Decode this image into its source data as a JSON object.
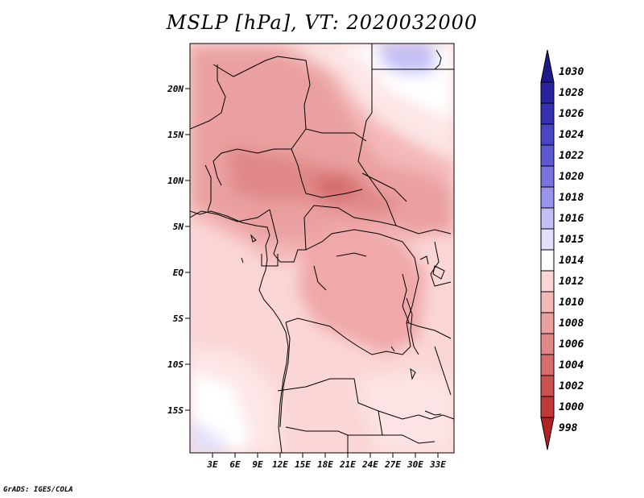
{
  "title": "MSLP [hPa], VT: 2020032000",
  "credit": "GrADS: IGES/COLA",
  "lat_labels": [
    "20N",
    "15N",
    "10N",
    "5N",
    "EQ",
    "5S",
    "10S",
    "15S"
  ],
  "lon_labels": [
    "3E",
    "6E",
    "9E",
    "12E",
    "15E",
    "18E",
    "21E",
    "24E",
    "27E",
    "30E",
    "33E"
  ],
  "colorbar": {
    "labels": [
      "1030",
      "1028",
      "1026",
      "1024",
      "1022",
      "1020",
      "1018",
      "1016",
      "1015",
      "1014",
      "1012",
      "1010",
      "1008",
      "1006",
      "1004",
      "1002",
      "1000",
      "998"
    ],
    "colors": [
      "#1f1a8a",
      "#2a23a0",
      "#3630b2",
      "#4a45c4",
      "#5e58d2",
      "#7a74e0",
      "#9a95ec",
      "#c2bff5",
      "#e2e0fb",
      "#ffffff",
      "#fad6d6",
      "#f4b8b8",
      "#eaa0a0",
      "#e08888",
      "#d66e6e",
      "#cc5252",
      "#c23838",
      "#b22222"
    ]
  },
  "map": {
    "variable": "MSLP",
    "units": "hPa",
    "valid_time": "2020032000"
  }
}
